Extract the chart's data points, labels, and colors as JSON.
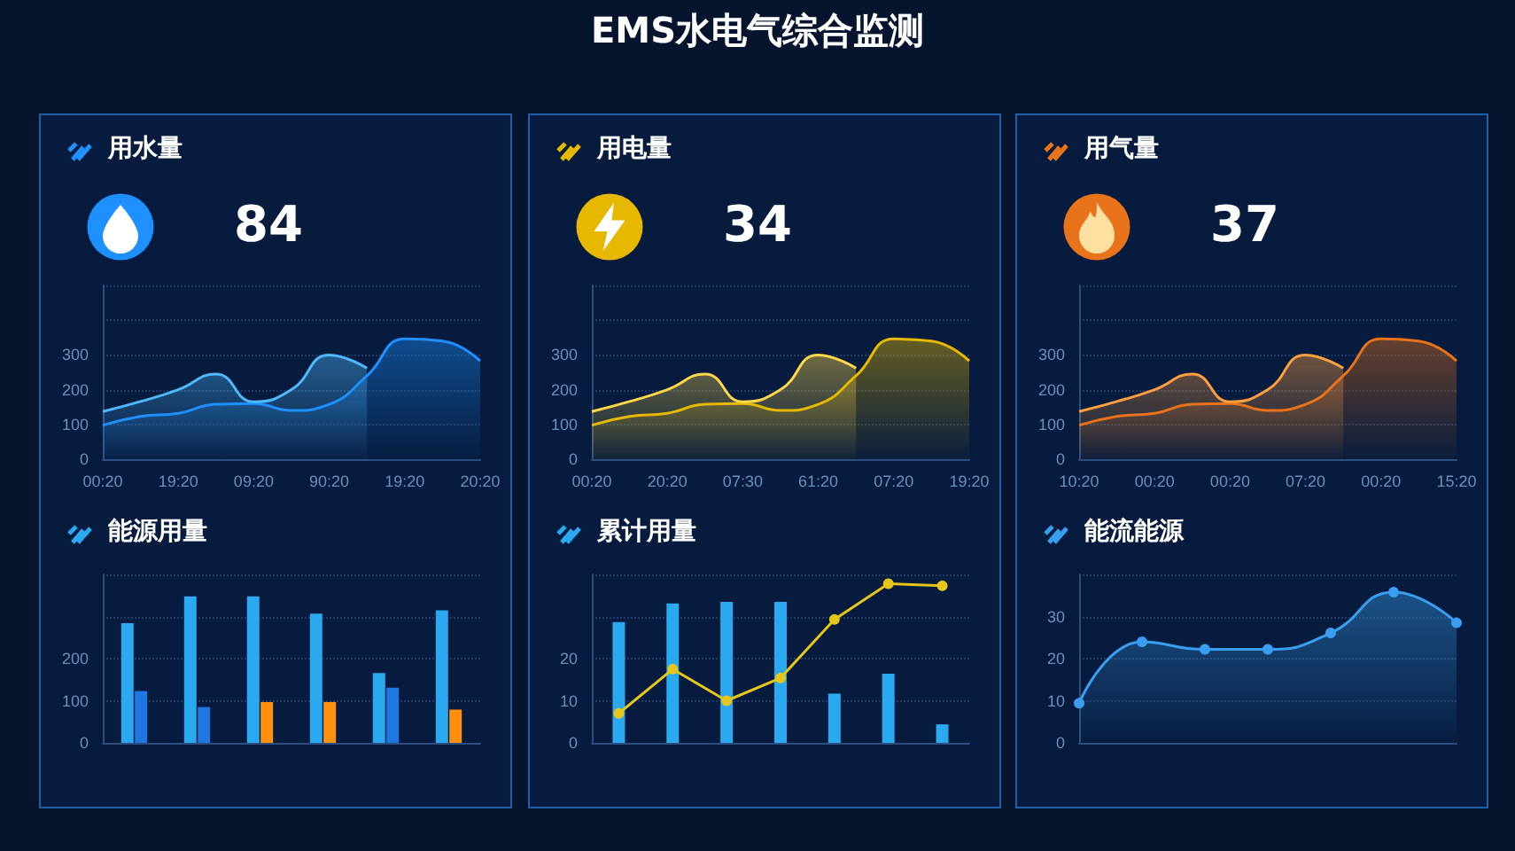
{
  "chart_data": [
    {
      "type": "other",
      "title": "EMS水电气综合监测"
    },
    {
      "type": "area",
      "title": "用水量",
      "annotations": [
        "84"
      ],
      "categories": [
        "00:20",
        null,
        "19:20",
        null,
        "09:20",
        null,
        "90:20",
        null,
        "19:20",
        null,
        "20:20"
      ],
      "ylim": [
        0,
        500
      ],
      "yticks": [
        0,
        100,
        200,
        300,
        {
          "value": 400,
          "label": null
        },
        {
          "value": 500,
          "label": null
        }
      ],
      "grid": "y",
      "series": [
        {
          "color": "#1e90ff",
          "values": [
            98,
            123,
            132,
            158,
            160,
            140,
            158,
            240,
            346,
            340,
            283
          ]
        },
        {
          "color": "#4fb8ff",
          "values": [
            137,
            166,
            200,
            245,
            165,
            200,
            300,
            262,
            null,
            null,
            null
          ]
        }
      ]
    },
    {
      "type": "area",
      "title": "用电量",
      "annotations": [
        "34"
      ],
      "categories": [
        "00:20",
        null,
        "20:20",
        null,
        "07:30",
        null,
        "61:20",
        null,
        "07:20",
        null,
        "19:20"
      ],
      "ylim": [
        0,
        500
      ],
      "yticks": [
        0,
        100,
        200,
        300,
        {
          "value": 400,
          "label": null
        },
        {
          "value": 500,
          "label": null
        }
      ],
      "grid": "y",
      "series": [
        {
          "color": "#e6b800",
          "values": [
            98,
            123,
            132,
            158,
            160,
            140,
            158,
            240,
            346,
            340,
            283
          ]
        },
        {
          "color": "#ffd84a",
          "values": [
            137,
            166,
            200,
            245,
            165,
            200,
            300,
            262,
            null,
            null,
            null
          ]
        }
      ]
    },
    {
      "type": "area",
      "title": "用气量",
      "annotations": [
        "37"
      ],
      "categories": [
        "10:20",
        null,
        "00:20",
        null,
        "00:20",
        null,
        "07:20",
        null,
        "00:20",
        null,
        "15:20"
      ],
      "ylim": [
        0,
        500
      ],
      "yticks": [
        0,
        100,
        200,
        300,
        {
          "value": 400,
          "label": null
        },
        {
          "value": 500,
          "label": null
        }
      ],
      "grid": "y",
      "series": [
        {
          "color": "#e8731a",
          "values": [
            98,
            123,
            132,
            158,
            160,
            140,
            158,
            240,
            346,
            340,
            283
          ]
        },
        {
          "color": "#ffa040",
          "values": [
            137,
            166,
            200,
            245,
            165,
            200,
            300,
            262,
            null,
            null,
            null
          ]
        }
      ]
    },
    {
      "type": "bar",
      "title": "能源用量",
      "categories": [
        null,
        null,
        null,
        null,
        null,
        null
      ],
      "ylim": [
        0,
        400
      ],
      "yticks": [
        0,
        100,
        200,
        {
          "value": 300,
          "label": null
        },
        {
          "value": 400,
          "label": null
        }
      ],
      "grid": "y",
      "series": [
        {
          "color": "#2aa8f0",
          "values": [
            284,
            348,
            348,
            307,
            166,
            315
          ]
        },
        {
          "color": "#1e78e0",
          "colors": [
            "#1e78e0",
            "#1e78e0",
            "#ff9010",
            "#ff9010",
            "#1e78e0",
            "#ff9010"
          ],
          "values": [
            123,
            85,
            97,
            97,
            131,
            79
          ]
        }
      ]
    },
    {
      "type": "bar",
      "title": "累计用量",
      "categories": [
        null,
        null,
        null,
        null,
        null,
        null,
        null
      ],
      "ylim": [
        0,
        40
      ],
      "yticks": [
        0,
        10,
        20,
        {
          "value": 30,
          "label": null
        },
        {
          "value": 40,
          "label": null
        }
      ],
      "grid": "y",
      "marker": "circle",
      "series": [
        {
          "color": "#2aa8f0",
          "values": [
            28.7,
            33.1,
            33.5,
            33.5,
            11.7,
            16.4,
            4.4
          ]
        },
        {
          "type": "line",
          "color": "#e6c619",
          "values": [
            7.0,
            17.5,
            10.0,
            15.4,
            29.3,
            37.8,
            37.3
          ]
        }
      ]
    },
    {
      "type": "area",
      "title": "能流能源",
      "categories": [
        null,
        null,
        null,
        null,
        null,
        null,
        null
      ],
      "ylim": [
        0,
        40
      ],
      "yticks": [
        0,
        10,
        20,
        30,
        {
          "value": 40,
          "label": null
        }
      ],
      "grid": "y",
      "marker": "circle",
      "series": [
        {
          "color": "#3a9ef0",
          "values": [
            9.4,
            24.0,
            22.2,
            22.2,
            26.1,
            35.8,
            28.5
          ]
        }
      ]
    }
  ]
}
